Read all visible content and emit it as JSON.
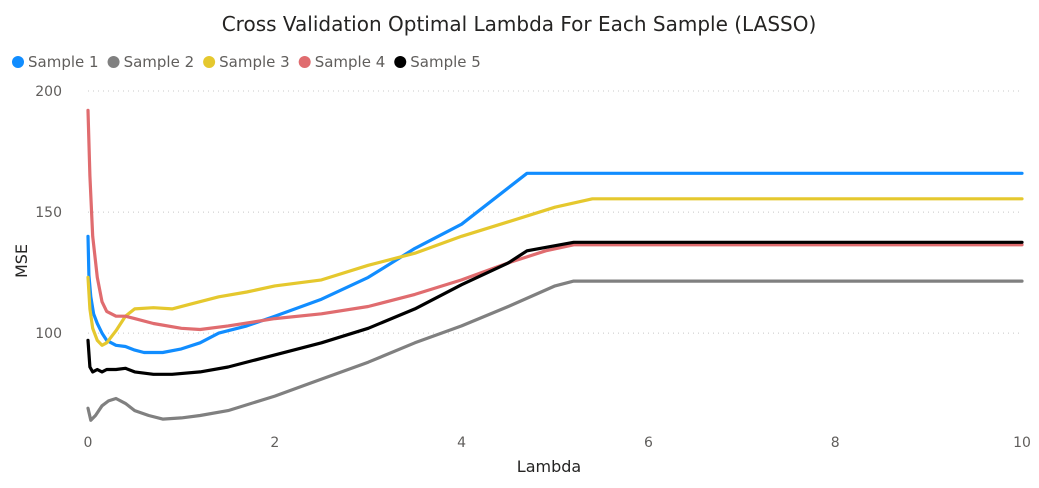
{
  "chart_data": {
    "type": "line",
    "title": "Cross Validation Optimal Lambda For Each Sample (LASSO)",
    "xlabel": "Lambda",
    "ylabel": "MSE",
    "xlim": [
      0,
      10
    ],
    "ylim": [
      60,
      200
    ],
    "x_ticks": [
      "0",
      "2",
      "4",
      "6",
      "8",
      "10"
    ],
    "y_ticks": [
      "100",
      "150",
      "200"
    ],
    "grid": "horizontal-dotted",
    "legend_position": "top-left",
    "series": [
      {
        "name": "Sample 1",
        "color": "#118DFF",
        "points": [
          [
            0.0,
            140
          ],
          [
            0.01,
            124
          ],
          [
            0.03,
            115
          ],
          [
            0.06,
            108
          ],
          [
            0.1,
            104
          ],
          [
            0.15,
            100
          ],
          [
            0.2,
            97
          ],
          [
            0.3,
            95
          ],
          [
            0.4,
            94.5
          ],
          [
            0.5,
            93
          ],
          [
            0.6,
            92
          ],
          [
            0.8,
            92
          ],
          [
            1.0,
            93.5
          ],
          [
            1.2,
            96
          ],
          [
            1.4,
            100
          ],
          [
            1.7,
            103
          ],
          [
            2.0,
            107
          ],
          [
            2.5,
            114
          ],
          [
            3.0,
            123
          ],
          [
            3.5,
            135
          ],
          [
            4.0,
            145
          ],
          [
            4.7,
            166
          ],
          [
            10.0,
            166
          ]
        ]
      },
      {
        "name": "Sample 2",
        "color": "#808080",
        "points": [
          [
            0.0,
            69
          ],
          [
            0.03,
            64
          ],
          [
            0.08,
            66
          ],
          [
            0.15,
            70
          ],
          [
            0.22,
            72
          ],
          [
            0.3,
            73
          ],
          [
            0.4,
            71
          ],
          [
            0.5,
            68
          ],
          [
            0.65,
            66
          ],
          [
            0.8,
            64.5
          ],
          [
            1.0,
            65
          ],
          [
            1.2,
            66
          ],
          [
            1.5,
            68
          ],
          [
            2.0,
            74
          ],
          [
            2.5,
            81
          ],
          [
            3.0,
            88
          ],
          [
            3.5,
            96
          ],
          [
            4.0,
            103
          ],
          [
            4.5,
            111
          ],
          [
            5.0,
            119.5
          ],
          [
            5.2,
            121.5
          ],
          [
            10.0,
            121.5
          ]
        ]
      },
      {
        "name": "Sample 3",
        "color": "#E5C82E",
        "points": [
          [
            0.0,
            123
          ],
          [
            0.02,
            110
          ],
          [
            0.05,
            102
          ],
          [
            0.1,
            97
          ],
          [
            0.15,
            95
          ],
          [
            0.2,
            96
          ],
          [
            0.3,
            101
          ],
          [
            0.4,
            107
          ],
          [
            0.5,
            110
          ],
          [
            0.7,
            110.5
          ],
          [
            0.9,
            110
          ],
          [
            1.1,
            112
          ],
          [
            1.4,
            115
          ],
          [
            1.7,
            117
          ],
          [
            2.0,
            119.5
          ],
          [
            2.5,
            122
          ],
          [
            3.0,
            128
          ],
          [
            3.5,
            133
          ],
          [
            4.0,
            140
          ],
          [
            4.5,
            146
          ],
          [
            5.0,
            152
          ],
          [
            5.4,
            155.5
          ],
          [
            10.0,
            155.5
          ]
        ]
      },
      {
        "name": "Sample 4",
        "color": "#E06C6F",
        "points": [
          [
            0.0,
            192
          ],
          [
            0.02,
            165
          ],
          [
            0.05,
            140
          ],
          [
            0.1,
            123
          ],
          [
            0.15,
            113
          ],
          [
            0.2,
            109
          ],
          [
            0.3,
            107
          ],
          [
            0.4,
            107
          ],
          [
            0.5,
            106
          ],
          [
            0.7,
            104
          ],
          [
            1.0,
            102
          ],
          [
            1.2,
            101.5
          ],
          [
            1.5,
            103
          ],
          [
            2.0,
            106
          ],
          [
            2.5,
            108
          ],
          [
            3.0,
            111
          ],
          [
            3.5,
            116
          ],
          [
            4.0,
            122
          ],
          [
            4.5,
            129
          ],
          [
            4.9,
            134
          ],
          [
            5.2,
            136.5
          ],
          [
            10.0,
            136.5
          ]
        ]
      },
      {
        "name": "Sample 5",
        "color": "#000000",
        "points": [
          [
            0.0,
            97
          ],
          [
            0.02,
            86
          ],
          [
            0.05,
            84
          ],
          [
            0.1,
            85
          ],
          [
            0.15,
            84
          ],
          [
            0.2,
            85
          ],
          [
            0.3,
            85
          ],
          [
            0.4,
            85.5
          ],
          [
            0.5,
            84
          ],
          [
            0.7,
            83
          ],
          [
            0.9,
            83
          ],
          [
            1.2,
            84
          ],
          [
            1.5,
            86
          ],
          [
            2.0,
            91
          ],
          [
            2.5,
            96
          ],
          [
            3.0,
            102
          ],
          [
            3.5,
            110
          ],
          [
            4.0,
            120
          ],
          [
            4.5,
            129
          ],
          [
            4.7,
            134
          ],
          [
            5.2,
            137.5
          ],
          [
            10.0,
            137.5
          ]
        ]
      }
    ]
  }
}
